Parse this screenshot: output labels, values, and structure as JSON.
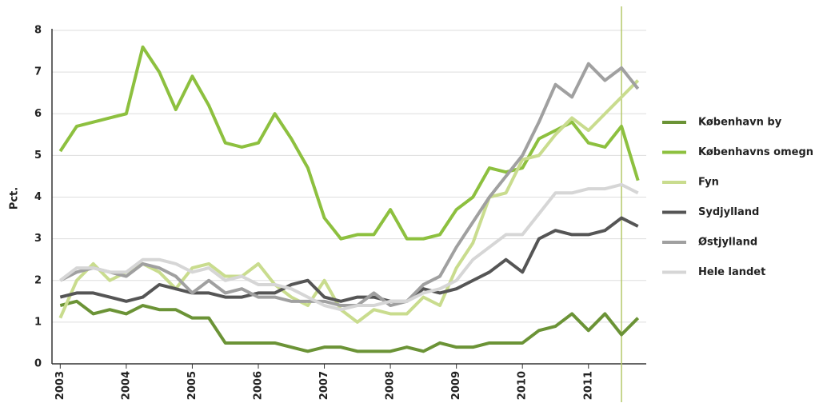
{
  "chart_data": {
    "type": "line",
    "y_label": "Pct.",
    "x": [
      2003,
      2003.25,
      2003.5,
      2003.75,
      2004,
      2004.25,
      2004.5,
      2004.75,
      2005,
      2005.25,
      2005.5,
      2005.75,
      2006,
      2006.25,
      2006.5,
      2006.75,
      2007,
      2007.25,
      2007.5,
      2007.75,
      2008,
      2008.25,
      2008.5,
      2008.75,
      2009,
      2009.25,
      2009.5,
      2009.75,
      2010,
      2010.25,
      2010.5,
      2010.75,
      2011,
      2011.25,
      2011.5,
      2011.75
    ],
    "series": [
      {
        "name": "København by",
        "color": "#6b9336",
        "values": [
          1.4,
          1.5,
          1.2,
          1.3,
          1.2,
          1.4,
          1.3,
          1.3,
          1.1,
          1.1,
          0.5,
          0.5,
          0.5,
          0.5,
          0.4,
          0.3,
          0.4,
          0.4,
          0.3,
          0.3,
          0.3,
          0.4,
          0.3,
          0.5,
          0.4,
          0.4,
          0.5,
          0.5,
          0.5,
          0.8,
          0.9,
          1.2,
          0.8,
          1.2,
          0.7,
          1.1
        ]
      },
      {
        "name": "Københavns omegn",
        "color": "#8dc03f",
        "values": [
          5.1,
          5.7,
          5.8,
          5.9,
          6.0,
          7.6,
          7.0,
          6.1,
          6.9,
          6.2,
          5.3,
          5.2,
          5.3,
          6.0,
          5.4,
          4.7,
          3.5,
          3.0,
          3.1,
          3.1,
          3.7,
          3.0,
          3.0,
          3.1,
          3.7,
          4.0,
          4.7,
          4.6,
          4.7,
          5.4,
          5.6,
          5.8,
          5.3,
          5.2,
          5.7,
          4.4
        ]
      },
      {
        "name": "Fyn",
        "color": "#c9dc8e",
        "values": [
          1.1,
          2.0,
          2.4,
          2.0,
          2.2,
          2.4,
          2.2,
          1.8,
          2.3,
          2.4,
          2.1,
          2.1,
          2.4,
          1.9,
          1.6,
          1.4,
          2.0,
          1.3,
          1.0,
          1.3,
          1.2,
          1.2,
          1.6,
          1.4,
          2.3,
          2.9,
          4.0,
          4.1,
          4.9,
          5.0,
          5.5,
          5.9,
          5.6,
          6.0,
          6.4,
          6.8
        ]
      },
      {
        "name": "Sydjylland",
        "color": "#555555",
        "values": [
          1.6,
          1.7,
          1.7,
          1.6,
          1.5,
          1.6,
          1.9,
          1.8,
          1.7,
          1.7,
          1.6,
          1.6,
          1.7,
          1.7,
          1.9,
          2.0,
          1.6,
          1.5,
          1.6,
          1.6,
          1.5,
          1.5,
          1.8,
          1.7,
          1.8,
          2.0,
          2.2,
          2.5,
          2.2,
          3.0,
          3.2,
          3.1,
          3.1,
          3.2,
          3.5,
          3.3
        ]
      },
      {
        "name": "Østjylland",
        "color": "#a0a0a0",
        "values": [
          2.0,
          2.2,
          2.3,
          2.2,
          2.1,
          2.4,
          2.3,
          2.1,
          1.7,
          2.0,
          1.7,
          1.8,
          1.6,
          1.6,
          1.5,
          1.5,
          1.5,
          1.4,
          1.4,
          1.7,
          1.4,
          1.5,
          1.9,
          2.1,
          2.8,
          3.4,
          4.0,
          4.5,
          5.0,
          5.8,
          6.7,
          6.4,
          7.2,
          6.8,
          7.1,
          6.6
        ]
      },
      {
        "name": "Hele landet",
        "color": "#d6d6d6",
        "values": [
          2.0,
          2.3,
          2.3,
          2.2,
          2.2,
          2.5,
          2.5,
          2.4,
          2.2,
          2.3,
          2.0,
          2.1,
          1.9,
          1.9,
          1.8,
          1.6,
          1.4,
          1.3,
          1.4,
          1.4,
          1.5,
          1.5,
          1.7,
          1.8,
          2.0,
          2.5,
          2.8,
          3.1,
          3.1,
          3.6,
          4.1,
          4.1,
          4.2,
          4.2,
          4.3,
          4.1
        ]
      }
    ],
    "xlim": [
      2002.875,
      2011.875
    ],
    "xticks": [
      2003,
      2004,
      2005,
      2006,
      2007,
      2008,
      2009,
      2010,
      2011
    ],
    "ylim": [
      0,
      8
    ],
    "yticks": [
      0,
      1,
      2,
      3,
      4,
      5,
      6,
      7,
      8
    ],
    "grid": true,
    "vline": {
      "x": 2011.5,
      "color": "#b5c96a"
    },
    "legend": "right"
  }
}
